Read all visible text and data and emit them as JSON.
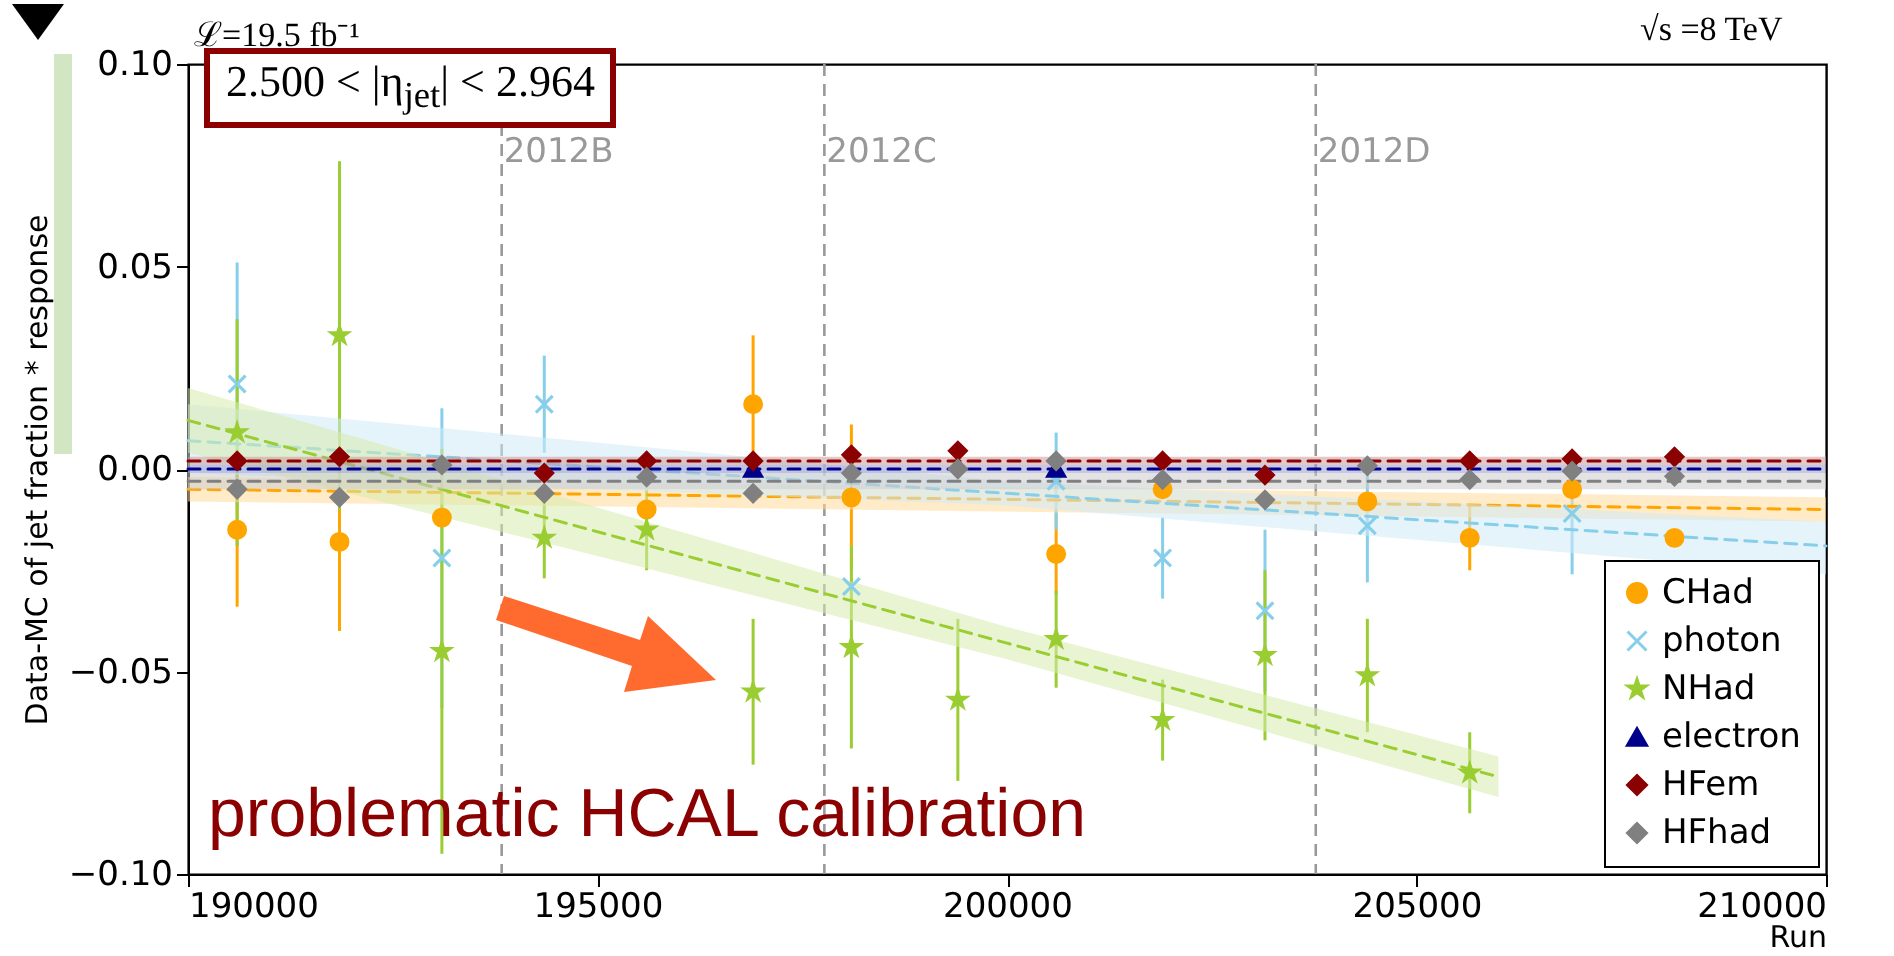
{
  "chart_data": {
    "type": "scatter",
    "xlabel": "Run",
    "ylabel": "Data-MC of jet fraction * response",
    "annotations": [
      "ℒ=19.5 fb⁻¹",
      "√s =8 TeV",
      "2.500 < |η$_{jet}$| < 2.964",
      "problematic HCAL calibration"
    ],
    "x": [
      190600,
      191850,
      193100,
      194350,
      195600,
      196900,
      198100,
      199400,
      200600,
      201900,
      203150,
      204400,
      205650,
      206900,
      208150
    ],
    "series": [
      {
        "name": "CHad",
        "marker": "circle",
        "color": "#ffa500",
        "values": [
          -0.015,
          -0.018,
          -0.012,
          null,
          -0.01,
          0.016,
          -0.007,
          null,
          -0.021,
          -0.005,
          null,
          -0.008,
          -0.017,
          -0.005,
          -0.017
        ],
        "errors": [
          0.019,
          0.022,
          null,
          null,
          null,
          0.017,
          0.018,
          null,
          0.01,
          null,
          null,
          null,
          0.008,
          null,
          null
        ]
      },
      {
        "name": "photon",
        "marker": "cross",
        "color": "#87ceeb",
        "values": [
          0.021,
          null,
          -0.022,
          0.016,
          null,
          null,
          -0.029,
          null,
          -0.003,
          -0.022,
          -0.035,
          -0.014,
          null,
          -0.011,
          null
        ],
        "errors": [
          0.03,
          null,
          0.037,
          0.012,
          null,
          null,
          null,
          null,
          0.012,
          0.01,
          0.02,
          0.014,
          null,
          0.015,
          null
        ]
      },
      {
        "name": "NHad",
        "marker": "star",
        "color": "#9acd32",
        "values": [
          0.009,
          0.033,
          -0.045,
          -0.017,
          -0.015,
          -0.055,
          -0.044,
          -0.057,
          -0.042,
          -0.062,
          -0.046,
          -0.051,
          -0.075,
          null,
          null
        ],
        "errors": [
          0.028,
          0.043,
          0.05,
          0.01,
          0.01,
          0.018,
          0.025,
          0.02,
          0.012,
          0.01,
          0.021,
          0.014,
          0.01,
          null,
          null
        ]
      },
      {
        "name": "electron",
        "marker": "triangle",
        "color": "#00008b",
        "values": [
          null,
          null,
          null,
          null,
          null,
          0,
          null,
          null,
          0,
          null,
          null,
          null,
          null,
          null,
          null
        ]
      },
      {
        "name": "HFem",
        "marker": "diamond",
        "color": "#8b0000",
        "values": [
          0.002,
          0.003,
          null,
          -0.001,
          0.002,
          0.002,
          0.0035,
          0.0045,
          null,
          0.002,
          -0.0015,
          null,
          0.002,
          0.0025,
          0.003
        ]
      },
      {
        "name": "HFhad",
        "marker": "diamond",
        "color": "#808080",
        "values": [
          -0.005,
          -0.007,
          0.001,
          -0.006,
          -0.002,
          -0.006,
          -0.001,
          0,
          0.002,
          -0.0026,
          -0.0076,
          0.0008,
          -0.0026,
          -0.0005,
          -0.0018
        ]
      },
      {
        "type": "line",
        "line_style": "dashed",
        "color": "#ffa500",
        "x": [
          190000,
          210000
        ],
        "values": [
          -0.005,
          -0.01
        ],
        "lower": [
          -0.008,
          -0.013
        ],
        "upper": [
          -0.002,
          -0.007
        ]
      },
      {
        "type": "line",
        "line_style": "dashed",
        "color": "#87ceeb",
        "x": [
          190000,
          200000,
          210000
        ],
        "values": [
          0.007,
          -0.006,
          -0.019
        ],
        "lower": [
          -0.001,
          -0.009,
          -0.026
        ],
        "upper": [
          0.016,
          -0.003,
          -0.013
        ]
      },
      {
        "type": "line",
        "line_style": "dashed",
        "color": "#9acd32",
        "x": [
          190000,
          200000,
          206000
        ],
        "values": [
          0.012,
          -0.043,
          -0.076
        ],
        "lower": [
          0.004,
          -0.047,
          -0.081
        ],
        "upper": [
          0.02,
          -0.039,
          -0.071
        ]
      },
      {
        "type": "line",
        "line_style": "dashed",
        "color": "#808080",
        "x": [
          190000,
          210000
        ],
        "values": [
          -0.003,
          -0.003
        ],
        "lower": [
          -0.005,
          -0.005
        ],
        "upper": [
          -0.001,
          -0.001
        ]
      },
      {
        "type": "line",
        "line_style": "dashed",
        "color": "#00008b",
        "x": [
          190000,
          210000
        ],
        "values": [
          0,
          0
        ],
        "lower": [
          -0.001,
          -0.001
        ],
        "upper": [
          0.001,
          0.001
        ]
      },
      {
        "type": "line",
        "line_style": "dashed",
        "color": "#8b0000",
        "x": [
          190000,
          210000
        ],
        "values": [
          0.002,
          0.002
        ],
        "lower": [
          0.001,
          0.001
        ],
        "upper": [
          0.003,
          0.003
        ]
      }
    ],
    "ref_lines": [
      {
        "axis": "x",
        "value": 193830,
        "label": "2012B",
        "color": "#999999",
        "line_style": "dashed"
      },
      {
        "axis": "x",
        "value": 197770,
        "label": "2012C",
        "color": "#999999",
        "line_style": "dashed"
      },
      {
        "axis": "x",
        "value": 203770,
        "label": "2012D",
        "color": "#999999",
        "line_style": "dashed"
      }
    ],
    "xlim": [
      190000,
      210000
    ],
    "xticks": [
      190000,
      195000,
      200000,
      205000,
      210000
    ],
    "ylim": [
      -0.1,
      0.1
    ],
    "yticks": [
      {
        "value": -0.1,
        "label": "−0.10"
      },
      {
        "value": -0.05,
        "label": "−0.05"
      },
      {
        "value": 0,
        "label": "0.00"
      },
      {
        "value": 0.05,
        "label": "0.05"
      },
      {
        "value": 0.1,
        "label": "0.10"
      }
    ],
    "grid": false,
    "legend": "bottom right"
  }
}
